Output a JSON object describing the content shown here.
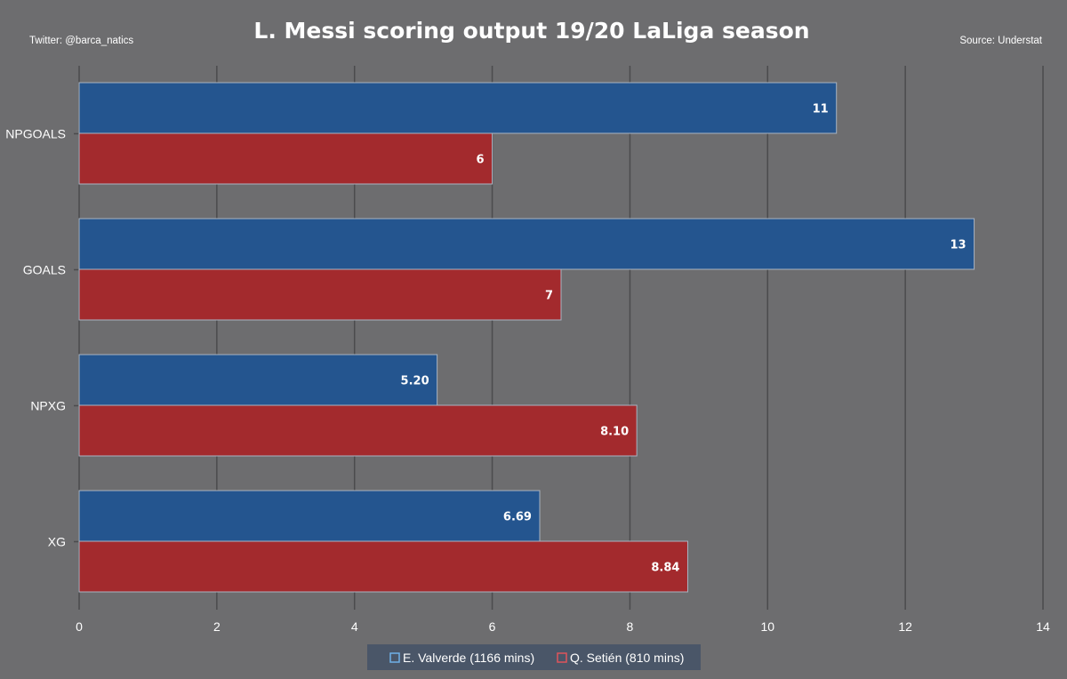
{
  "header": {
    "title": "L. Messi scoring output 19/20 LaLiga season",
    "twitter": "Twitter: @barca_natics",
    "source": "Source: Understat"
  },
  "colors": {
    "background": "#6d6d6f",
    "series_1": "#24558f",
    "series_2": "#a32a2d",
    "grid": "#4b4b4d",
    "bar_edge": "#a9b4c2"
  },
  "chart_data": {
    "type": "bar",
    "orientation": "horizontal",
    "categories": [
      "NPGOALS",
      "GOALS",
      "NPXG",
      "XG"
    ],
    "series": [
      {
        "name": "E. Valverde (1166 mins)",
        "values": [
          11,
          13,
          5.2,
          6.69
        ],
        "labels": [
          "11",
          "13",
          "5.20",
          "6.69"
        ]
      },
      {
        "name": "Q. Setién (810 mins)",
        "values": [
          6,
          7,
          8.1,
          8.84
        ],
        "labels": [
          "6",
          "7",
          "8.10",
          "8.84"
        ]
      }
    ],
    "xlim": [
      0,
      14
    ],
    "xticks": [
      "0",
      "2",
      "4",
      "6",
      "8",
      "10",
      "12",
      "14"
    ],
    "grid": true,
    "legend": "bottom-center"
  }
}
